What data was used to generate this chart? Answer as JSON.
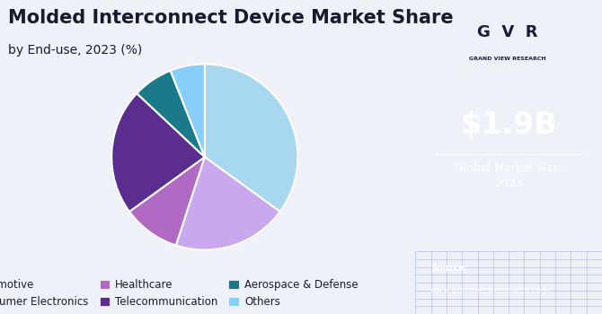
{
  "title_line1": "Molded Interconnect Device Market Share",
  "title_line2": "by End-use, 2023 (%)",
  "slices": [
    {
      "label": "Automotive",
      "value": 35,
      "color": "#a8d8f0"
    },
    {
      "label": "Consumer Electronics",
      "value": 20,
      "color": "#c9a8f0"
    },
    {
      "label": "Healthcare",
      "value": 10,
      "color": "#b06ac4"
    },
    {
      "label": "Telecommunication",
      "value": 22,
      "color": "#5b2d8e"
    },
    {
      "label": "Aerospace & Defense",
      "value": 7,
      "color": "#1a7a8a"
    },
    {
      "label": "Others",
      "value": 6,
      "color": "#87cefa"
    }
  ],
  "start_angle": 90,
  "sidebar_bg": "#3b1f6e",
  "sidebar_bottom_bg": "#4a5aaa",
  "main_bg": "#eef2f8",
  "title_color": "#1a1a2e",
  "market_size_text": "$1.9B",
  "market_size_label": "Global Market Size,\n2023",
  "source_label": "Source:",
  "source_url": "www.grandviewresearch.com",
  "logo_text": "GRAND VIEW RESEARCH",
  "legend_fontsize": 8.5,
  "title_fontsize": 15,
  "subtitle_fontsize": 10
}
